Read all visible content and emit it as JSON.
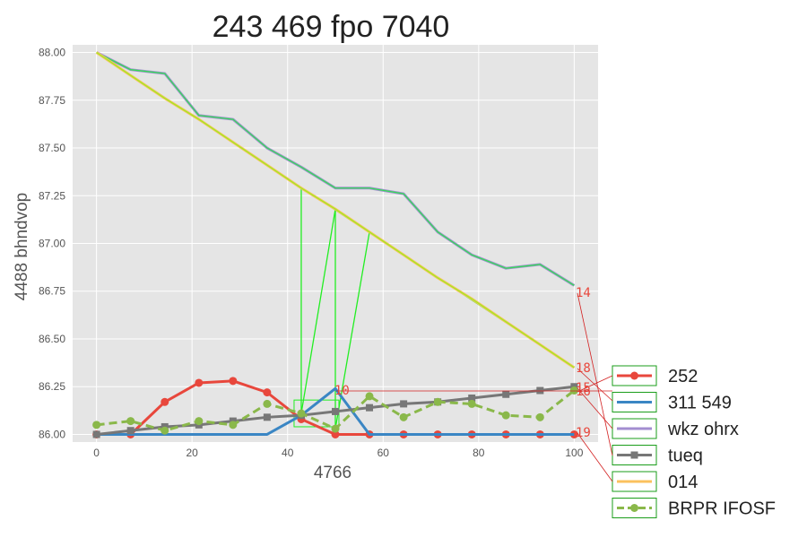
{
  "chart_data": {
    "type": "line",
    "title": "243 469 fpo 7040",
    "xlabel": "4766",
    "ylabel": "4488 bhndvop",
    "xlim": [
      -5,
      105
    ],
    "ylim": [
      85.96,
      88.04
    ],
    "xticks": [
      0,
      20,
      40,
      60,
      80,
      100
    ],
    "yticks": [
      86.0,
      86.25,
      86.5,
      86.75,
      87.0,
      87.25,
      87.5,
      87.75,
      88.0
    ],
    "x": [
      0,
      7.14,
      14.29,
      21.43,
      28.57,
      35.71,
      42.86,
      50,
      57.14,
      64.29,
      71.43,
      78.57,
      85.71,
      92.86,
      100
    ],
    "grid": true,
    "legend_position": "outside-right",
    "series": [
      {
        "name": "252",
        "color": "#e8473c",
        "marker": "circle",
        "dashed": false,
        "values": [
          86.0,
          86.0,
          86.17,
          86.27,
          86.28,
          86.22,
          86.08,
          86.0,
          86.0,
          86.0,
          86.0,
          86.0,
          86.0,
          86.0,
          86.0
        ]
      },
      {
        "name": "311 549",
        "color": "#3a86c4",
        "marker": "none",
        "dashed": false,
        "values": [
          86.0,
          86.0,
          86.0,
          86.0,
          86.0,
          86.0,
          86.1,
          86.24,
          86.0,
          86.0,
          86.0,
          86.0,
          86.0,
          86.0,
          86.0
        ]
      },
      {
        "name": "wkz ohrx",
        "color": "#a38ed0",
        "marker": "none",
        "dashed": false,
        "values": [
          88.0,
          87.91,
          87.89,
          87.67,
          87.65,
          87.5,
          87.4,
          87.29,
          87.29,
          87.26,
          87.06,
          86.94,
          86.87,
          86.89,
          86.78
        ]
      },
      {
        "name": "tueq",
        "color": "#777777",
        "marker": "square",
        "dashed": false,
        "values": [
          86.0,
          86.02,
          86.04,
          86.05,
          86.07,
          86.09,
          86.1,
          86.12,
          86.14,
          86.16,
          86.17,
          86.19,
          86.21,
          86.23,
          86.25
        ]
      },
      {
        "name": "014",
        "color": "#fbc15e",
        "marker": "none",
        "dashed": false,
        "values": [
          88.0,
          87.88,
          87.76,
          87.65,
          87.53,
          87.41,
          87.29,
          87.18,
          87.06,
          86.94,
          86.82,
          86.71,
          86.59,
          86.47,
          86.35
        ]
      },
      {
        "name": "BRPR IFOSF",
        "color": "#8ab84a",
        "marker": "circle",
        "dashed": true,
        "values": [
          86.05,
          86.07,
          86.02,
          86.07,
          86.05,
          86.16,
          86.11,
          86.03,
          86.2,
          86.09,
          86.17,
          86.16,
          86.1,
          86.09,
          86.23
        ]
      }
    ],
    "annotations": [
      "14",
      "18",
      "16",
      "15",
      "19",
      "10"
    ]
  }
}
